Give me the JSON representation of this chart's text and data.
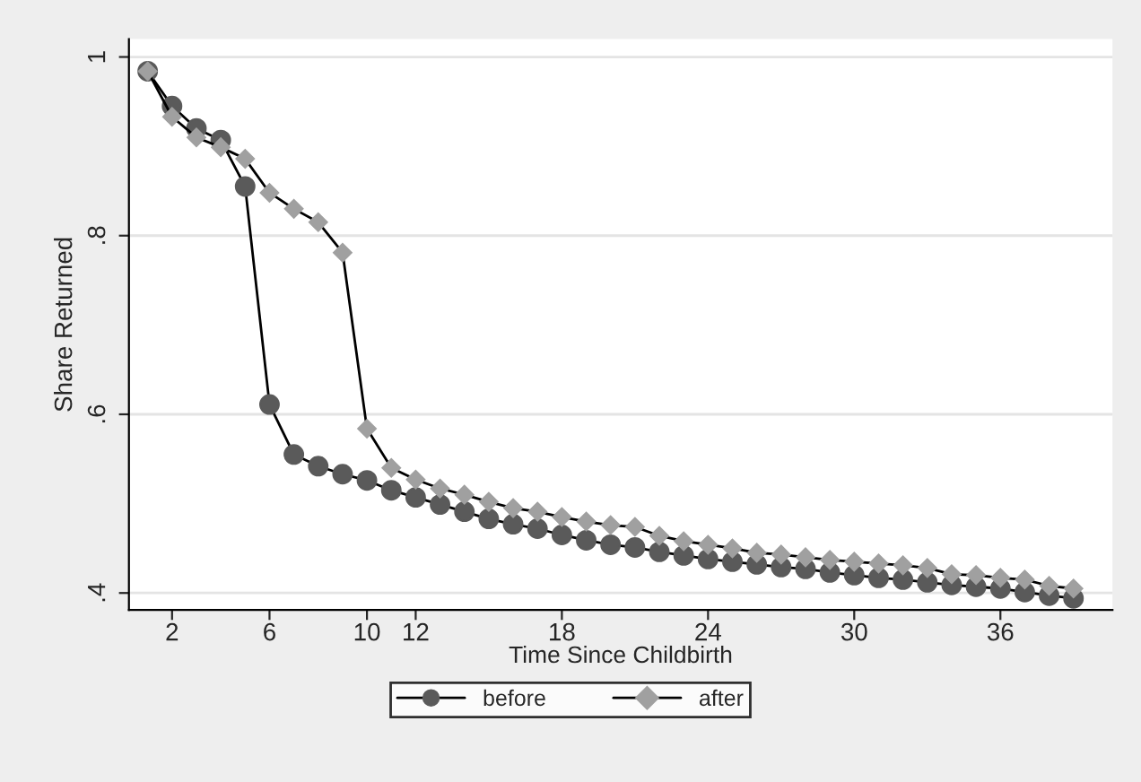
{
  "chart_data": {
    "type": "line",
    "xlabel": "Time Since Childbirth",
    "ylabel": "Share Returned",
    "x": [
      1,
      2,
      3,
      4,
      5,
      6,
      7,
      8,
      9,
      10,
      11,
      12,
      13,
      14,
      15,
      16,
      17,
      18,
      19,
      20,
      21,
      22,
      23,
      24,
      25,
      26,
      27,
      28,
      29,
      30,
      31,
      32,
      33,
      34,
      35,
      36,
      37,
      38,
      39
    ],
    "series": [
      {
        "name": "before",
        "color": "#5a5a5a",
        "marker": "circle",
        "values": [
          0.984,
          0.945,
          0.92,
          0.907,
          0.855,
          0.611,
          0.555,
          0.542,
          0.533,
          0.526,
          0.515,
          0.507,
          0.499,
          0.491,
          0.483,
          0.477,
          0.472,
          0.465,
          0.459,
          0.454,
          0.451,
          0.446,
          0.442,
          0.438,
          0.435,
          0.432,
          0.429,
          0.427,
          0.423,
          0.42,
          0.417,
          0.415,
          0.412,
          0.409,
          0.407,
          0.405,
          0.401,
          0.397,
          0.394
        ]
      },
      {
        "name": "after",
        "color": "#a0a0a0",
        "marker": "diamond",
        "values": [
          0.984,
          0.933,
          0.91,
          0.899,
          0.886,
          0.848,
          0.83,
          0.815,
          0.781,
          0.584,
          0.54,
          0.527,
          0.517,
          0.51,
          0.502,
          0.495,
          0.491,
          0.485,
          0.48,
          0.476,
          0.474,
          0.464,
          0.458,
          0.454,
          0.45,
          0.445,
          0.443,
          0.44,
          0.437,
          0.435,
          0.433,
          0.431,
          0.428,
          0.421,
          0.42,
          0.417,
          0.415,
          0.408,
          0.405
        ]
      }
    ],
    "xlim": [
      0.23,
      40.6
    ],
    "xticks": [
      2,
      6,
      10,
      12,
      18,
      24,
      30,
      36
    ],
    "ylim": [
      0.381,
      1.02
    ],
    "yticks": [
      {
        "value": 0.4,
        "label": ".4"
      },
      {
        "value": 0.6,
        "label": ".6"
      },
      {
        "value": 0.8,
        "label": ".8"
      },
      {
        "value": 1,
        "label": "1"
      }
    ],
    "grid": "y",
    "legend": "bottom",
    "line_style": "solid"
  }
}
